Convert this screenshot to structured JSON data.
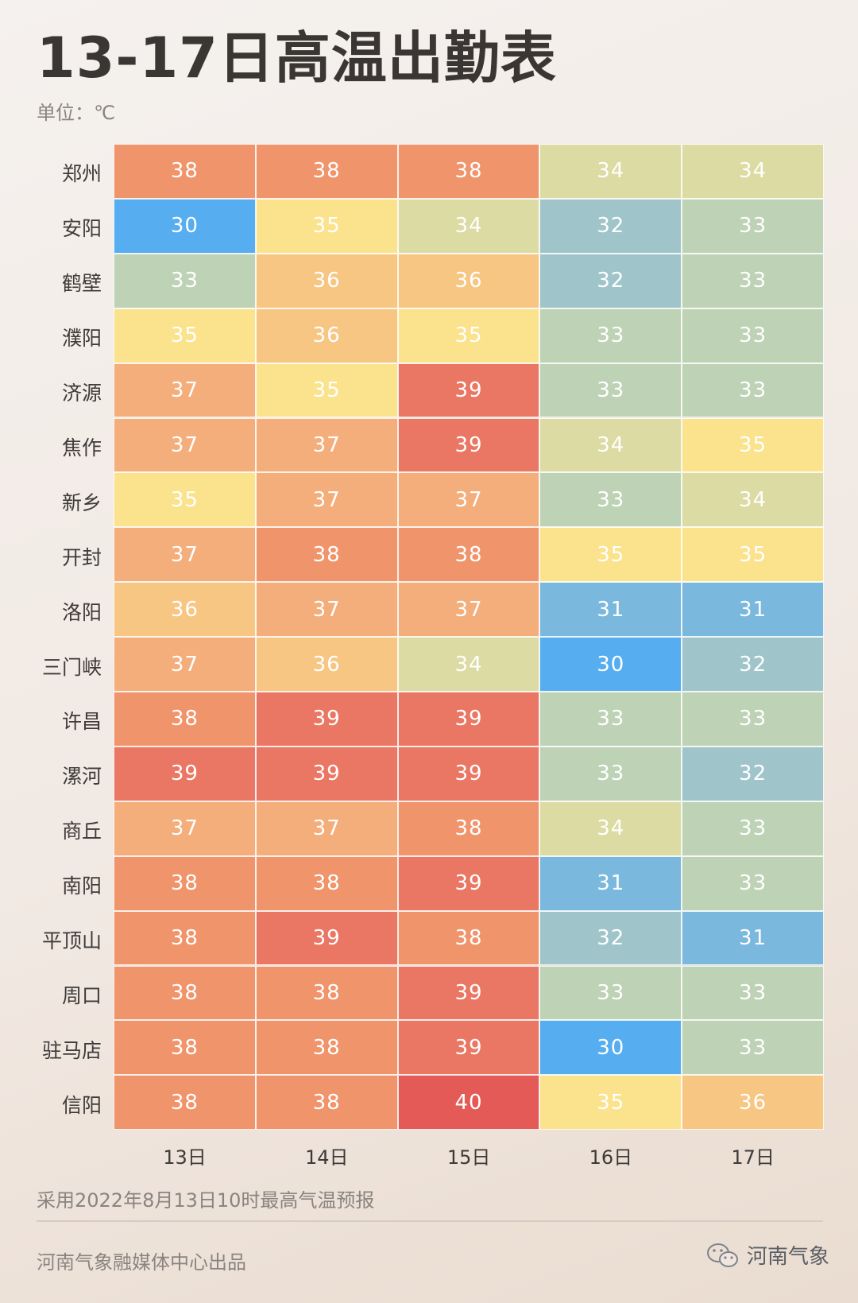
{
  "title": "13-17日高温出勤表",
  "unit_label": "单位：℃",
  "footnote": "采用2022年8月13日10时最高气温预报",
  "credit": "河南气象融媒体中心出品",
  "brand": {
    "name": "河南气象",
    "icon": "wechat-icon"
  },
  "colors": {
    "30": "#56adf0",
    "31": "#7ab8de",
    "32": "#9fc5ca",
    "33": "#bed2b6",
    "34": "#dcdba3",
    "35": "#fbe28c",
    "36": "#f7c683",
    "37": "#f3ae7b",
    "38": "#ef946b",
    "39": "#ea7763",
    "40": "#e35a56"
  },
  "chart_data": {
    "type": "heatmap",
    "title": "13-17日高温出勤表",
    "unit": "℃",
    "columns": [
      "13日",
      "14日",
      "15日",
      "16日",
      "17日"
    ],
    "rows": [
      "郑州",
      "安阳",
      "鹤壁",
      "濮阳",
      "济源",
      "焦作",
      "新乡",
      "开封",
      "洛阳",
      "三门峡",
      "许昌",
      "漯河",
      "商丘",
      "南阳",
      "平顶山",
      "周口",
      "驻马店",
      "信阳"
    ],
    "values": [
      [
        38,
        38,
        38,
        34,
        34
      ],
      [
        30,
        35,
        34,
        32,
        33
      ],
      [
        33,
        36,
        36,
        32,
        33
      ],
      [
        35,
        36,
        35,
        33,
        33
      ],
      [
        37,
        35,
        39,
        33,
        33
      ],
      [
        37,
        37,
        39,
        34,
        35
      ],
      [
        35,
        37,
        37,
        33,
        34
      ],
      [
        37,
        38,
        38,
        35,
        35
      ],
      [
        36,
        37,
        37,
        31,
        31
      ],
      [
        37,
        36,
        34,
        30,
        32
      ],
      [
        38,
        39,
        39,
        33,
        33
      ],
      [
        39,
        39,
        39,
        33,
        32
      ],
      [
        37,
        37,
        38,
        34,
        33
      ],
      [
        38,
        38,
        39,
        31,
        33
      ],
      [
        38,
        39,
        38,
        32,
        31
      ],
      [
        38,
        38,
        39,
        33,
        33
      ],
      [
        38,
        38,
        39,
        30,
        33
      ],
      [
        38,
        38,
        40,
        35,
        36
      ]
    ]
  }
}
